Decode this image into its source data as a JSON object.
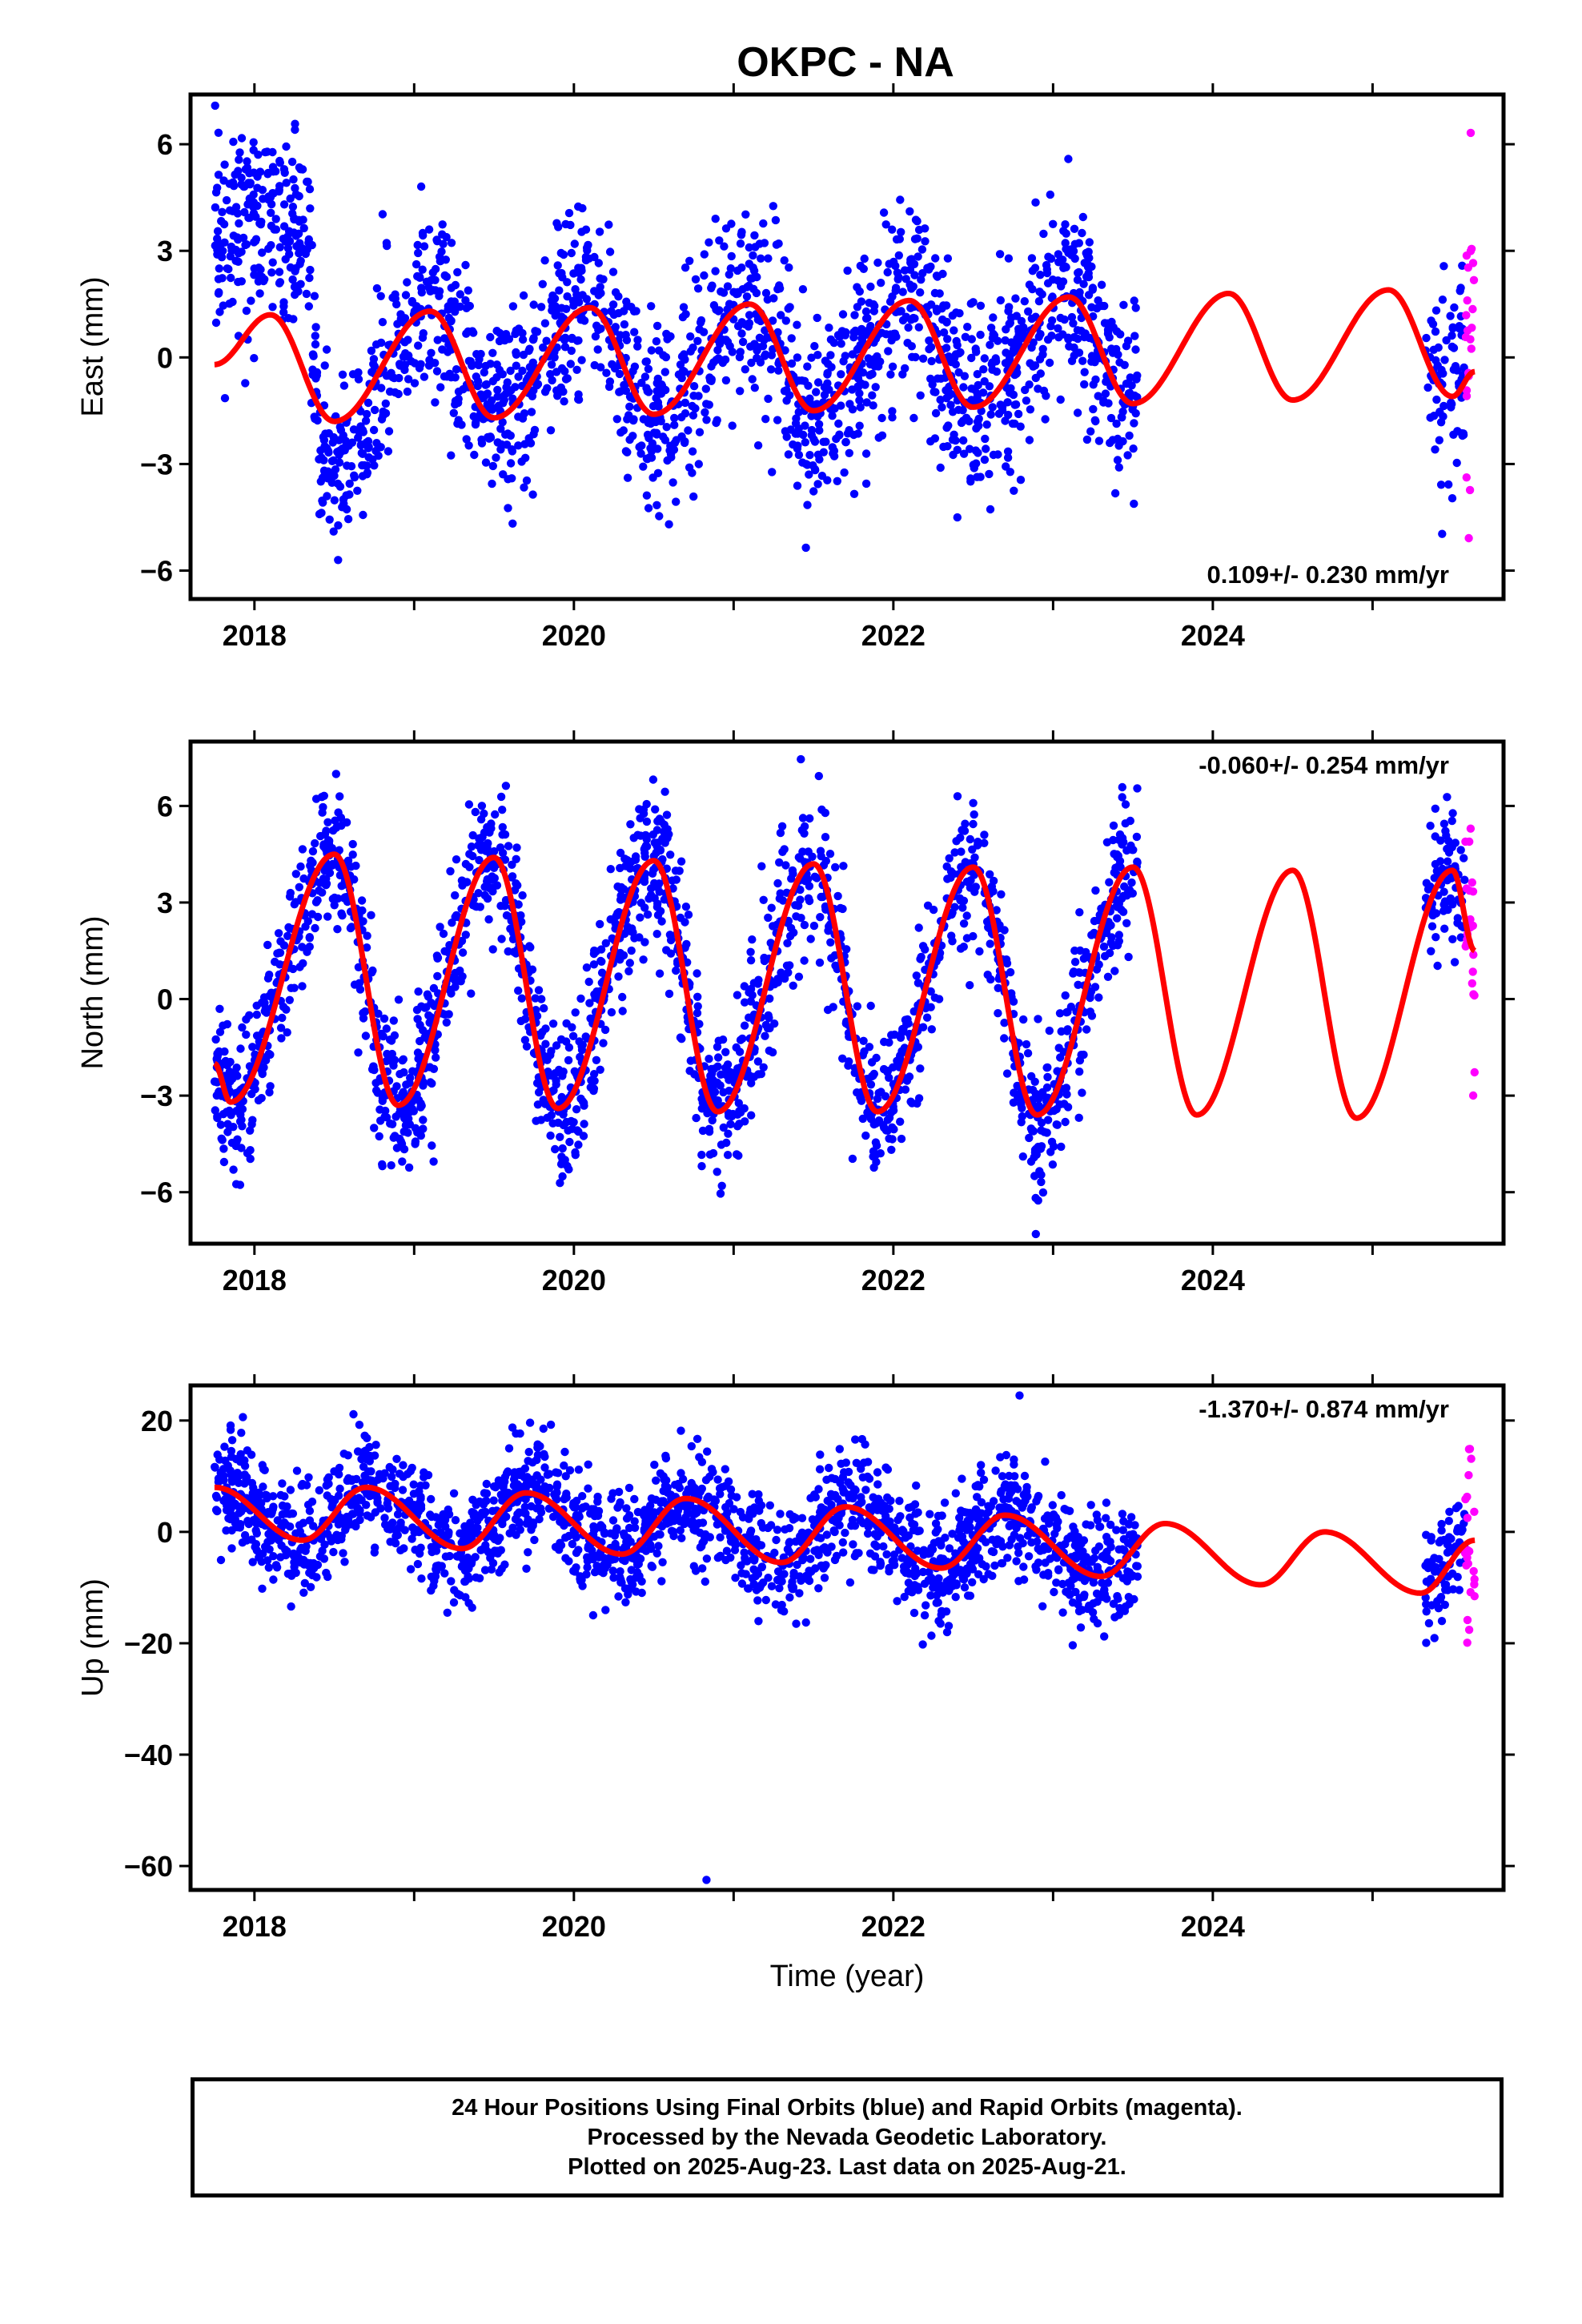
{
  "title": "OKPC - NA",
  "colors": {
    "final_orbits": "#0000ff",
    "rapid_orbits": "#ff00ff",
    "model_fit": "#ff0000",
    "frame": "#000000"
  },
  "footer": {
    "line1": "24 Hour Positions Using Final Orbits (blue) and Rapid Orbits (magenta).",
    "line2": "Processed by the Nevada Geodetic Laboratory.",
    "line3": "Plotted on 2025-Aug-23. Last data on 2025-Aug-21."
  },
  "chart_data": [
    {
      "type": "scatter",
      "component": "East",
      "ylabel": "East (mm)",
      "xlabel": "",
      "xlim": [
        2017.6,
        2025.82
      ],
      "ylim": [
        -6.8,
        7.4
      ],
      "yticks": [
        -6,
        -3,
        0,
        3,
        6
      ],
      "yticklabels": [
        "−6",
        "−3",
        "0",
        "3",
        "6"
      ],
      "xticks": [
        2018,
        2020,
        2022,
        2024
      ],
      "xticklabels": [
        "2018",
        "2020",
        "2022",
        "2024"
      ],
      "rate_text": "0.109+/- 0.230 mm/yr",
      "rate_position": "bottom-right",
      "final_range": [
        2017.75,
        2023.53
      ],
      "final_range_2": [
        2025.33,
        2025.58
      ],
      "rapid_range": [
        2025.58,
        2025.64
      ],
      "model_range": [
        2017.75,
        2025.64
      ],
      "series": [
        {
          "name": "Final Orbits",
          "color": "#0000ff",
          "description_points": [
            [
              2017.8,
              3.5
            ],
            [
              2018.0,
              3.8
            ],
            [
              2018.3,
              3.0
            ],
            [
              2018.5,
              -1.5
            ],
            [
              2018.6,
              -3.5
            ],
            [
              2019.0,
              1.0
            ],
            [
              2019.5,
              -2.0
            ],
            [
              2020.0,
              1.5
            ],
            [
              2020.5,
              -3.0
            ],
            [
              2021.0,
              1.5
            ],
            [
              2021.5,
              -1.5
            ],
            [
              2022.0,
              1.0
            ],
            [
              2022.5,
              -2.5
            ],
            [
              2023.0,
              1.5
            ],
            [
              2023.5,
              -2.0
            ]
          ]
        },
        {
          "name": "Rapid Orbits",
          "color": "#ff00ff"
        },
        {
          "name": "Model",
          "color": "#ff0000",
          "key_points": [
            [
              2017.75,
              -0.2
            ],
            [
              2018.1,
              1.2
            ],
            [
              2018.5,
              -1.8
            ],
            [
              2019.1,
              1.3
            ],
            [
              2019.5,
              -1.7
            ],
            [
              2020.1,
              1.4
            ],
            [
              2020.5,
              -1.6
            ],
            [
              2021.1,
              1.5
            ],
            [
              2021.5,
              -1.5
            ],
            [
              2022.1,
              1.6
            ],
            [
              2022.5,
              -1.4
            ],
            [
              2023.1,
              1.7
            ],
            [
              2023.5,
              -1.3
            ],
            [
              2024.1,
              1.8
            ],
            [
              2024.5,
              -1.2
            ],
            [
              2025.1,
              1.9
            ],
            [
              2025.5,
              -1.1
            ],
            [
              2025.64,
              -0.4
            ]
          ]
        }
      ]
    },
    {
      "type": "scatter",
      "component": "North",
      "ylabel": "North (mm)",
      "xlabel": "",
      "xlim": [
        2017.6,
        2025.82
      ],
      "ylim": [
        -7.6,
        8.0
      ],
      "yticks": [
        -6,
        -3,
        0,
        3,
        6
      ],
      "yticklabels": [
        "−6",
        "−3",
        "0",
        "3",
        "6"
      ],
      "xticks": [
        2018,
        2020,
        2022,
        2024
      ],
      "xticklabels": [
        "2018",
        "2020",
        "2022",
        "2024"
      ],
      "rate_text": "-0.060+/- 0.254 mm/yr",
      "rate_position": "top-right",
      "final_range": [
        2017.75,
        2023.53
      ],
      "final_range_2": [
        2025.33,
        2025.58
      ],
      "rapid_range": [
        2025.58,
        2025.64
      ],
      "model_range": [
        2017.75,
        2025.64
      ],
      "series": [
        {
          "name": "Final Orbits",
          "color": "#0000ff"
        },
        {
          "name": "Rapid Orbits",
          "color": "#ff00ff"
        },
        {
          "name": "Model",
          "color": "#ff0000",
          "key_points": [
            [
              2017.75,
              -2.0
            ],
            [
              2017.85,
              -3.2
            ],
            [
              2018.5,
              4.5
            ],
            [
              2018.9,
              -3.3
            ],
            [
              2019.5,
              4.4
            ],
            [
              2019.9,
              -3.4
            ],
            [
              2020.5,
              4.3
            ],
            [
              2020.9,
              -3.5
            ],
            [
              2021.5,
              4.2
            ],
            [
              2021.9,
              -3.5
            ],
            [
              2022.5,
              4.1
            ],
            [
              2022.9,
              -3.6
            ],
            [
              2023.5,
              4.1
            ],
            [
              2023.9,
              -3.6
            ],
            [
              2024.5,
              4.0
            ],
            [
              2024.9,
              -3.7
            ],
            [
              2025.5,
              4.0
            ],
            [
              2025.64,
              1.5
            ]
          ]
        }
      ]
    },
    {
      "type": "scatter",
      "component": "Up",
      "ylabel": "Up (mm)",
      "xlabel": "Time (year)",
      "xlim": [
        2017.6,
        2025.82
      ],
      "ylim": [
        -64.3,
        26.3
      ],
      "yticks": [
        -60,
        -40,
        -20,
        0,
        20
      ],
      "yticklabels": [
        "−60",
        "−40",
        "−20",
        "0",
        "20"
      ],
      "xticks": [
        2018,
        2020,
        2022,
        2024
      ],
      "xticklabels": [
        "2018",
        "2020",
        "2022",
        "2024"
      ],
      "rate_text": "-1.370+/- 0.874 mm/yr",
      "rate_position": "top-right",
      "final_range": [
        2017.75,
        2023.53
      ],
      "final_range_2": [
        2025.33,
        2025.58
      ],
      "rapid_range": [
        2025.58,
        2025.64
      ],
      "model_range": [
        2017.75,
        2025.64
      ],
      "outliers": [
        [
          2020.83,
          -62.5
        ],
        [
          2022.79,
          24.5
        ]
      ],
      "series": [
        {
          "name": "Final Orbits",
          "color": "#0000ff"
        },
        {
          "name": "Rapid Orbits",
          "color": "#ff00ff"
        },
        {
          "name": "Model",
          "color": "#ff0000",
          "key_points": [
            [
              2017.75,
              8.0
            ],
            [
              2018.3,
              -1.5
            ],
            [
              2018.7,
              8.0
            ],
            [
              2019.3,
              -3.0
            ],
            [
              2019.7,
              7.0
            ],
            [
              2020.3,
              -4.0
            ],
            [
              2020.7,
              6.0
            ],
            [
              2021.3,
              -5.5
            ],
            [
              2021.7,
              4.5
            ],
            [
              2022.3,
              -6.5
            ],
            [
              2022.7,
              3.0
            ],
            [
              2023.3,
              -8.0
            ],
            [
              2023.7,
              1.5
            ],
            [
              2024.3,
              -9.5
            ],
            [
              2024.7,
              0.0
            ],
            [
              2025.3,
              -11.0
            ],
            [
              2025.64,
              -1.5
            ]
          ]
        }
      ]
    }
  ]
}
